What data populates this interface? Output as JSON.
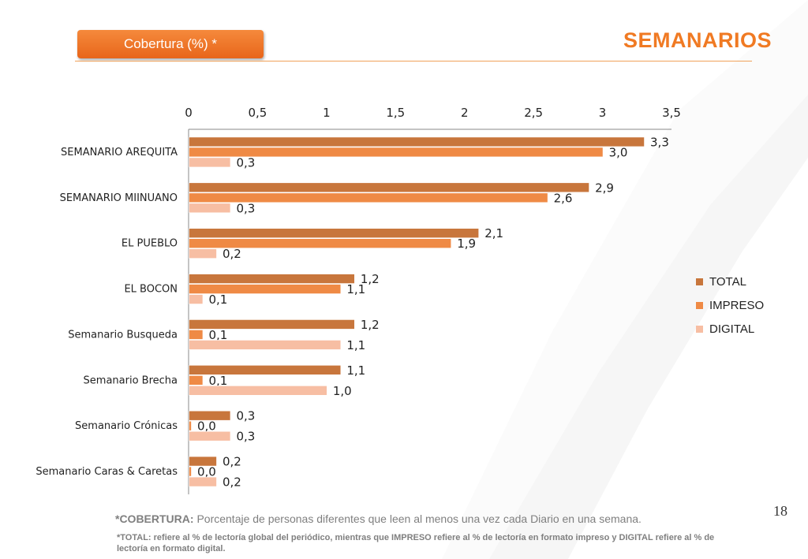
{
  "header": {
    "badge_label": "Cobertura (%) *",
    "title": "SEMANARIOS"
  },
  "page_number": "18",
  "footer": {
    "cobertura_term": "*COBERTURA:",
    "cobertura_text": " Porcentaje de personas diferentes que leen al menos una vez cada Diario en una semana.",
    "note": "*TOTAL: refiere al % de lectoría global del periódico, mientras que IMPRESO refiere al % de lectoría en formato impreso y DIGITAL refiere al % de lectoría en formato digital."
  },
  "chart_data": {
    "type": "bar",
    "orientation": "horizontal",
    "categories": [
      "SEMANARIO AREQUITA",
      "SEMANARIO MIINUANO",
      "EL PUEBLO",
      "EL BOCON",
      "Semanario Busqueda",
      "Semanario Brecha",
      "Semanario Crónicas",
      "Semanario Caras & Caretas"
    ],
    "series": [
      {
        "name": "TOTAL",
        "color": "#c8763c",
        "values": [
          3.3,
          2.9,
          2.1,
          1.2,
          1.2,
          1.1,
          0.3,
          0.2
        ],
        "labels": [
          "3,3",
          "2,9",
          "2,1",
          "1,2",
          "1,2",
          "1,1",
          "0,3",
          "0,2"
        ]
      },
      {
        "name": "IMPRESO",
        "color": "#ef8a45",
        "values": [
          3.0,
          2.6,
          1.9,
          1.1,
          0.1,
          0.1,
          0.0,
          0.0
        ],
        "labels": [
          "3,0",
          "2,6",
          "1,9",
          "1,1",
          "0,1",
          "0,1",
          "0,0",
          "0,0"
        ]
      },
      {
        "name": "DIGITAL",
        "color": "#f7bea3",
        "values": [
          0.3,
          0.3,
          0.2,
          0.1,
          1.1,
          1.0,
          0.3,
          0.2
        ],
        "labels": [
          "0,3",
          "0,3",
          "0,2",
          "0,1",
          "1,1",
          "1,0",
          "0,3",
          "0,2"
        ]
      }
    ],
    "x_ticks": [
      "0",
      "0,5",
      "1",
      "1,5",
      "2",
      "2,5",
      "3",
      "3,5"
    ],
    "xlim": [
      0,
      3.5
    ],
    "axis_position": "top",
    "grid": false,
    "legend_position": "right"
  }
}
